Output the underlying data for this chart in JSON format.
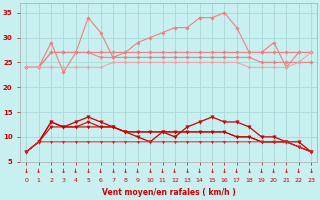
{
  "x": [
    0,
    1,
    2,
    3,
    4,
    5,
    6,
    7,
    8,
    9,
    10,
    11,
    12,
    13,
    14,
    15,
    16,
    17,
    18,
    19,
    20,
    21,
    22,
    23
  ],
  "series_high": [
    {
      "values": [
        24,
        24,
        29,
        23,
        27,
        34,
        31,
        26,
        27,
        29,
        30,
        31,
        32,
        32,
        34,
        34,
        35,
        32,
        27,
        27,
        29,
        24,
        27,
        27
      ],
      "color": "#f08080",
      "lw": 0.8,
      "marker": "D",
      "ms": 1.8
    },
    {
      "values": [
        24,
        24,
        27,
        27,
        27,
        27,
        27,
        27,
        27,
        27,
        27,
        27,
        27,
        27,
        27,
        27,
        27,
        27,
        27,
        27,
        27,
        27,
        27,
        27
      ],
      "color": "#f08080",
      "lw": 0.8,
      "marker": "D",
      "ms": 1.8
    },
    {
      "values": [
        24,
        24,
        27,
        27,
        27,
        27,
        26,
        26,
        26,
        26,
        26,
        26,
        26,
        26,
        26,
        26,
        26,
        26,
        26,
        25,
        25,
        25,
        25,
        25
      ],
      "color": "#f08080",
      "lw": 0.8,
      "marker": "D",
      "ms": 1.8
    },
    {
      "values": [
        24,
        24,
        24,
        24,
        24,
        24,
        24,
        25,
        25,
        25,
        25,
        25,
        25,
        25,
        25,
        25,
        25,
        25,
        24,
        24,
        24,
        24,
        25,
        27
      ],
      "color": "#f4a0a0",
      "lw": 0.7,
      "marker": "D",
      "ms": 1.5
    }
  ],
  "series_low": [
    {
      "values": [
        7,
        9,
        13,
        12,
        13,
        14,
        13,
        12,
        11,
        10,
        9,
        11,
        10,
        12,
        13,
        14,
        13,
        13,
        12,
        10,
        10,
        9,
        9,
        7
      ],
      "color": "#cc0000",
      "lw": 0.9,
      "marker": "v",
      "ms": 2.5
    },
    {
      "values": [
        7,
        9,
        13,
        12,
        12,
        13,
        12,
        12,
        11,
        11,
        11,
        11,
        11,
        11,
        11,
        11,
        11,
        10,
        10,
        9,
        9,
        9,
        8,
        7
      ],
      "color": "#cc0000",
      "lw": 0.8,
      "marker": "v",
      "ms": 2.2
    },
    {
      "values": [
        7,
        9,
        12,
        12,
        12,
        12,
        12,
        12,
        11,
        11,
        11,
        11,
        11,
        11,
        11,
        11,
        11,
        10,
        10,
        9,
        9,
        9,
        8,
        7
      ],
      "color": "#cc0000",
      "lw": 0.8,
      "marker": "v",
      "ms": 2.2
    },
    {
      "values": [
        7,
        9,
        9,
        9,
        9,
        9,
        9,
        9,
        9,
        9,
        9,
        9,
        9,
        9,
        9,
        9,
        9,
        9,
        9,
        9,
        9,
        9,
        8,
        7
      ],
      "color": "#dd2222",
      "lw": 0.7,
      "marker": "v",
      "ms": 1.8
    }
  ],
  "bg_color": "#c8f0f0",
  "grid_color": "#a8d8d8",
  "tick_color": "#cc0000",
  "label_color": "#cc0000",
  "xlabel": "Vent moyen/en rafales ( km/h )",
  "ylim": [
    5,
    37
  ],
  "xlim": [
    -0.5,
    23.5
  ],
  "yticks": [
    5,
    10,
    15,
    20,
    25,
    30,
    35
  ],
  "xticks": [
    0,
    1,
    2,
    3,
    4,
    5,
    6,
    7,
    8,
    9,
    10,
    11,
    12,
    13,
    14,
    15,
    16,
    17,
    18,
    19,
    20,
    21,
    22,
    23
  ],
  "xtick_labels": [
    "0",
    "1",
    "2",
    "3",
    "4",
    "5",
    "6",
    "7",
    "8",
    "9",
    "10",
    "11",
    "12",
    "13",
    "14",
    "15",
    "16",
    "17",
    "18",
    "19",
    "20",
    "21",
    "22",
    "23"
  ]
}
